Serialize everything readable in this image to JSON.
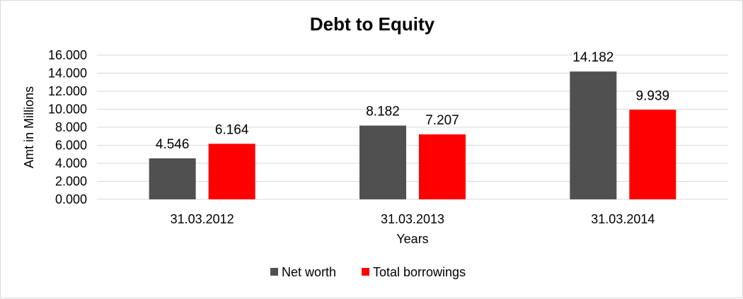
{
  "chart_data": {
    "type": "bar",
    "title": "Debt to Equity",
    "xlabel": "Years",
    "ylabel": "Amt in Millions",
    "categories": [
      "31.03.2012",
      "31.03.2013",
      "31.03.2014"
    ],
    "series": [
      {
        "name": "Net worth",
        "values": [
          4.546,
          8.182,
          14.182
        ],
        "color": "#505050"
      },
      {
        "name": "Total borrowings",
        "values": [
          6.164,
          7.207,
          9.939
        ],
        "color": "#ff0000"
      }
    ],
    "ylim": [
      0,
      16
    ],
    "yticks": [
      "0.000",
      "2.000",
      "4.000",
      "6.000",
      "8.000",
      "10.000",
      "12.000",
      "14.000",
      "16.000"
    ],
    "data_labels": [
      [
        "4.546",
        "8.182",
        "14.182"
      ],
      [
        "6.164",
        "7.207",
        "9.939"
      ]
    ],
    "grid": true,
    "gridline_color": "#d9d9d9",
    "legend_position": "bottom"
  }
}
